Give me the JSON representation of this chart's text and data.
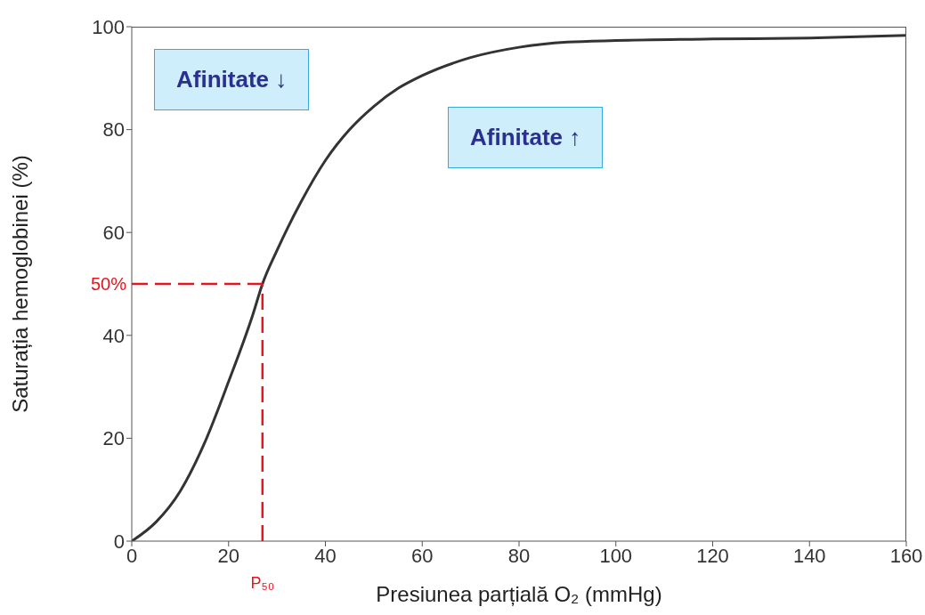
{
  "chart_data": {
    "type": "line",
    "xlabel": "Presiunea parțială O₂ (mmHg)",
    "ylabel": "Saturația hemoglobinei (%)",
    "xlim": [
      0,
      160
    ],
    "xticks": [
      0,
      20,
      40,
      60,
      80,
      100,
      120,
      140,
      160
    ],
    "ylim": [
      0,
      100
    ],
    "yticks": [
      0,
      20,
      40,
      60,
      80,
      100
    ],
    "grid": false,
    "legend": false,
    "marker": "none",
    "line_style": "solid",
    "series": [
      {
        "color": "#333333",
        "x": [
          0,
          5,
          10,
          15,
          20,
          25,
          27,
          30,
          35,
          40,
          45,
          50,
          55,
          60,
          70,
          80,
          90,
          100,
          120,
          140,
          160
        ],
        "values": [
          0,
          3.7,
          9.7,
          19,
          31,
          44,
          50,
          56.5,
          66,
          74,
          80,
          84.5,
          88,
          90.5,
          94,
          96,
          97,
          97.3,
          97.6,
          97.8,
          98.3
        ]
      }
    ],
    "ref_lines": [
      {
        "axis": "y",
        "value": 50,
        "label": "50%",
        "color": "#e8141e",
        "line_style": "dashed"
      },
      {
        "axis": "x",
        "value": 27,
        "label": "P₅₀",
        "color": "#e8141e",
        "line_style": "dashed"
      }
    ],
    "annotations": [
      "Afinitate ↓",
      "Afinitate ↑"
    ]
  }
}
